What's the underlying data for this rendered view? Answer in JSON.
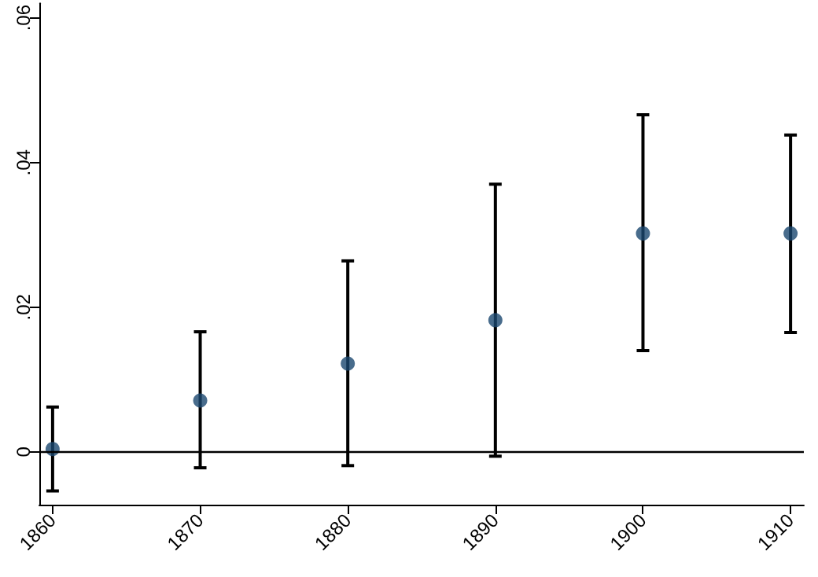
{
  "chart_data": {
    "type": "scatter",
    "x": [
      1860,
      1870,
      1880,
      1890,
      1900,
      1910
    ],
    "series": [
      {
        "color": "#1a476f",
        "values": [
          0.0004,
          0.0071,
          0.0122,
          0.0182,
          0.0302,
          0.0302
        ],
        "errors": [
          [
            -0.0054,
            0.0062
          ],
          [
            -0.0022,
            0.0166
          ],
          [
            -0.0019,
            0.0264
          ],
          [
            -0.0006,
            0.037
          ],
          [
            0.014,
            0.0466
          ],
          [
            0.0165,
            0.0438
          ]
        ]
      }
    ],
    "xlim": [
      1859.1,
      1910.9
    ],
    "xticks": [
      1860,
      1870,
      1880,
      1890,
      1900,
      1910
    ],
    "ylim": [
      -0.0073,
      0.062
    ],
    "yticks": [
      {
        "value": 0,
        "label": "0"
      },
      {
        "value": 0.02,
        "label": ".02"
      },
      {
        "value": 0.04,
        "label": ".04"
      },
      {
        "value": 0.06,
        "label": ".06"
      }
    ],
    "ref_lines": [
      {
        "axis": "y",
        "value": 0,
        "color": "#000000"
      }
    ],
    "marker": "circle"
  }
}
